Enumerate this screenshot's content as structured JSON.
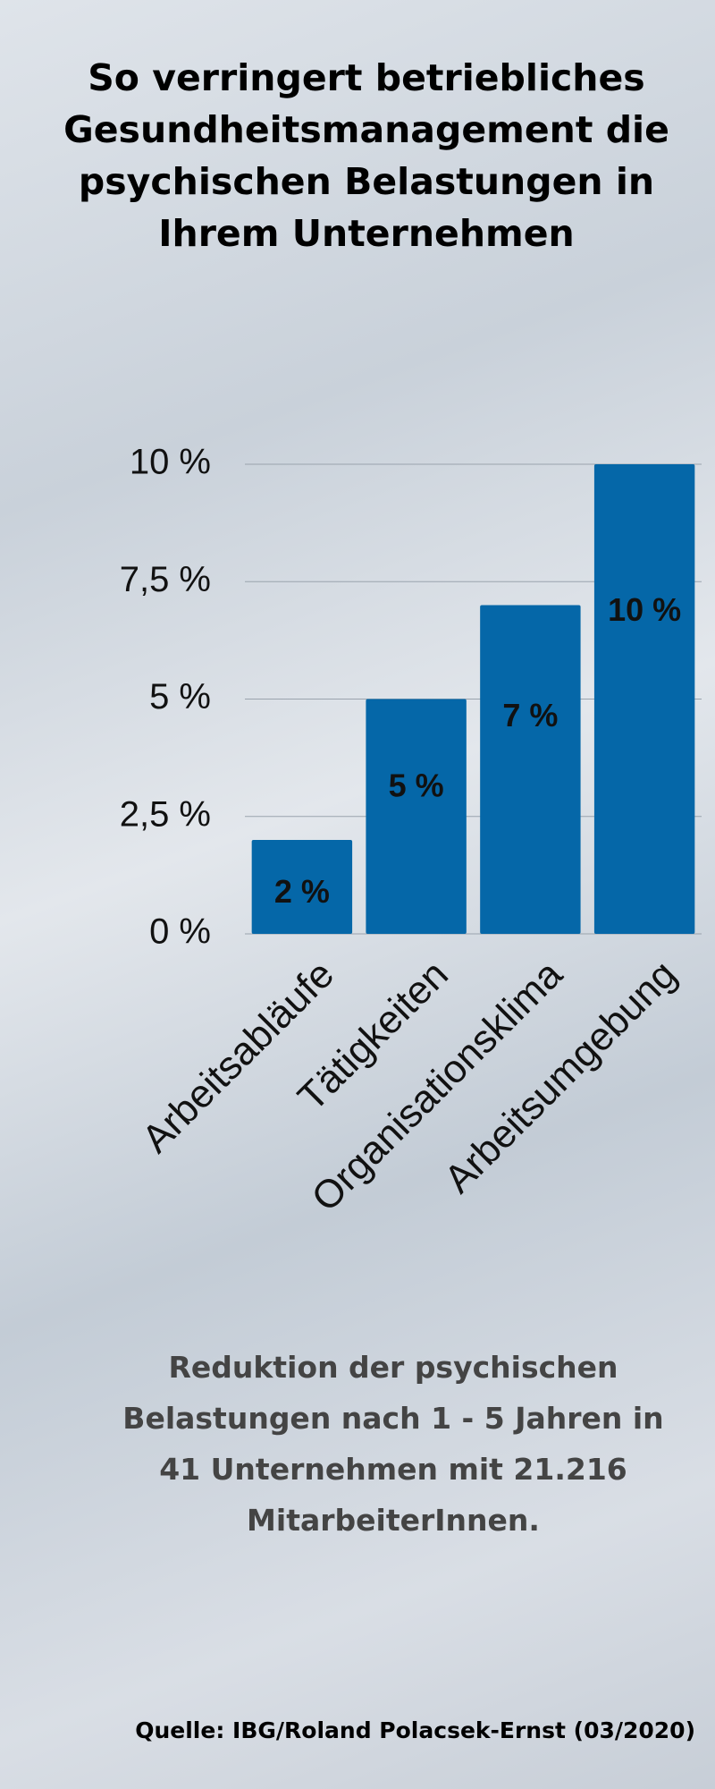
{
  "chart_data": {
    "type": "bar",
    "title": "So verringert betriebliches Gesundheitsmanagement die psychischen Belastungen in Ihrem Unternehmen",
    "categories": [
      "Arbeitsabläufe",
      "Tätigkeiten",
      "Organisationsklima",
      "Arbeitsumgebung"
    ],
    "values": [
      2,
      5,
      7,
      10
    ],
    "value_labels": [
      "2 %",
      "5 %",
      "7 %",
      "10 %"
    ],
    "color": "#0567a8",
    "ylim": [
      0,
      10
    ],
    "yticks": [
      {
        "value": 0,
        "label": "0 %"
      },
      {
        "value": 2.5,
        "label": "2,5 %"
      },
      {
        "value": 5,
        "label": "5 %"
      },
      {
        "value": 7.5,
        "label": "7,5 %"
      },
      {
        "value": 10,
        "label": "10 %"
      }
    ],
    "grid": true,
    "annotations": [
      "Reduktion der psychischen Belastungen nach 1 - 5 Jahren in 41 Unternehmen mit 21.216 MitarbeiterInnen.",
      "Quelle: IBG/Roland Polacsek-Ernst (03/2020)"
    ]
  }
}
